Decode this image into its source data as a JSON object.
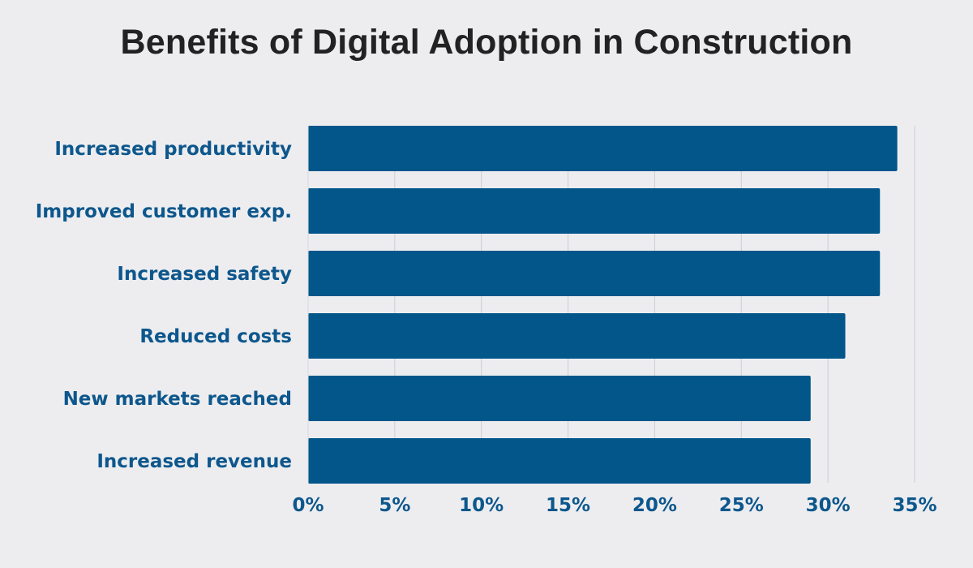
{
  "chart_data": {
    "type": "bar",
    "orientation": "horizontal",
    "title": "Benefits of Digital Adoption in Construction",
    "categories": [
      "Increased productivity",
      "Improved customer exp.",
      "Increased safety",
      "Reduced costs",
      "New markets reached",
      "Increased revenue"
    ],
    "values": [
      34,
      33,
      33,
      31,
      29,
      29
    ],
    "value_unit": "%",
    "xlim": [
      0,
      35
    ],
    "xticks": [
      0,
      5,
      10,
      15,
      20,
      25,
      30,
      35
    ],
    "xtick_labels": [
      "0%",
      "5%",
      "10%",
      "15%",
      "20%",
      "25%",
      "30%",
      "35%"
    ],
    "grid": true,
    "colors": {
      "bar": "#02568a",
      "label": "#0d578c",
      "title": "#222222",
      "grid": "#c9ced6",
      "background": "#ededf0"
    }
  }
}
